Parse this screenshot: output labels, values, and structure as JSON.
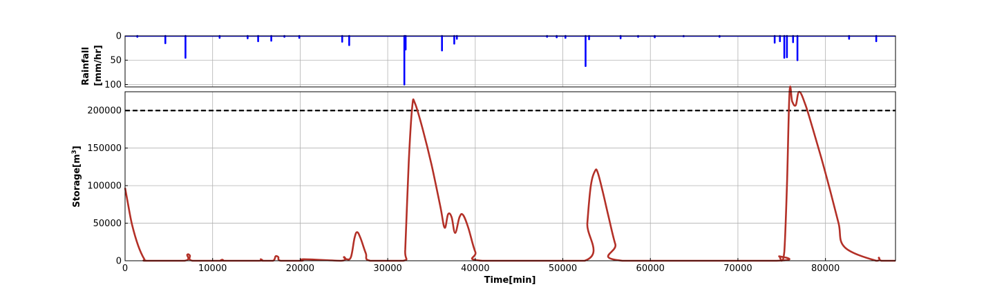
{
  "chart_data": [
    {
      "type": "bar",
      "ylabel_lines": [
        "Rainfall",
        "[mm/hr]"
      ],
      "xlim": [
        0,
        88000
      ],
      "ylim": [
        0,
        105
      ],
      "y_inverted": true,
      "yticks": [
        0,
        50,
        100
      ],
      "xticks": [
        0,
        10000,
        20000,
        30000,
        40000,
        50000,
        60000,
        70000,
        80000
      ],
      "grid": true,
      "color": "#0000ff",
      "x": [
        1400,
        4600,
        6900,
        10800,
        14000,
        15200,
        16700,
        18200,
        19900,
        24800,
        25600,
        31900,
        32050,
        36200,
        37600,
        37900,
        48200,
        49300,
        50300,
        52600,
        53000,
        56600,
        58600,
        60500,
        63800,
        67900,
        74200,
        74800,
        75300,
        75600,
        76300,
        76800,
        82700,
        85800
      ],
      "values": [
        2,
        15,
        45,
        4,
        5,
        11,
        10,
        2,
        4,
        12,
        19,
        100,
        28,
        30,
        16,
        6,
        2,
        3,
        4,
        62,
        7,
        5,
        2,
        3,
        1,
        2,
        14,
        11,
        45,
        44,
        13,
        50,
        6,
        11
      ]
    },
    {
      "type": "line",
      "xlabel": "Time[min]",
      "ylabel": "Storage[m",
      "ylabel_sup": "3",
      "ylabel_end": "]",
      "xlim": [
        0,
        88000
      ],
      "ylim": [
        0,
        225000
      ],
      "xticks": [
        0,
        10000,
        20000,
        30000,
        40000,
        50000,
        60000,
        70000,
        80000
      ],
      "yticks": [
        0,
        50000,
        100000,
        150000,
        200000
      ],
      "grid": true,
      "threshold": {
        "value": 200000,
        "color": "#000000",
        "style": "dashed"
      },
      "series": [
        {
          "color": "#b33027",
          "x": [
            0,
            300,
            800,
            1500,
            2200,
            2500,
            6800,
            7100,
            7400,
            7700,
            10900,
            11100,
            11300,
            15300,
            15500,
            15700,
            16900,
            17200,
            17500,
            17800,
            20200,
            20400,
            24700,
            25000,
            25300,
            25800,
            26200,
            26500,
            26900,
            27500,
            28000,
            31800,
            32000,
            32400,
            32800,
            33100,
            34000,
            35000,
            36000,
            36500,
            36900,
            37300,
            37700,
            38200,
            38600,
            39200,
            40000,
            40800,
            52500,
            52800,
            53200,
            53700,
            54000,
            54500,
            55200,
            56000,
            56800,
            74400,
            74700,
            75000,
            75300,
            75600,
            75900,
            76200,
            76600,
            77000,
            77700,
            78500,
            79500,
            80500,
            81500,
            82200,
            85800,
            86100,
            86400,
            88000
          ],
          "y": [
            97000,
            78000,
            48000,
            20000,
            2000,
            0,
            0,
            8000,
            7000,
            0,
            0,
            1500,
            0,
            0,
            2000,
            0,
            0,
            6000,
            5000,
            0,
            0,
            2000,
            0,
            5000,
            2000,
            5000,
            30000,
            38000,
            30000,
            10000,
            0,
            0,
            15000,
            130000,
            205000,
            210000,
            175000,
            128000,
            73000,
            44000,
            62000,
            58000,
            37000,
            58000,
            61000,
            44000,
            12000,
            0,
            0,
            50000,
            100000,
            120000,
            117000,
            95000,
            60000,
            22000,
            0,
            0,
            6000,
            0,
            12000,
            100000,
            225000,
            212000,
            207000,
            225000,
            208000,
            178000,
            138000,
            95000,
            50000,
            18000,
            0,
            4000,
            0,
            0
          ]
        }
      ]
    }
  ]
}
